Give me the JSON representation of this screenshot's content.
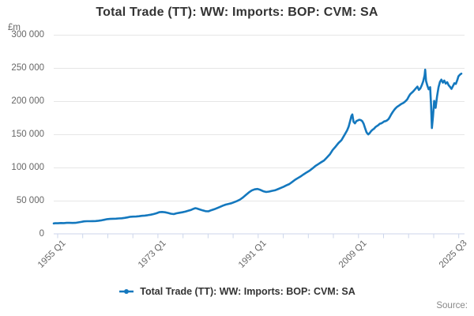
{
  "chart": {
    "title": "Total Trade (TT): WW: Imports: BOP: CVM: SA"
  },
  "legend": {
    "label": "Total Trade (TT): WW: Imports: BOP: CVM: SA"
  },
  "footer": {
    "source": "Source:"
  },
  "colors": {
    "series": "#1478be",
    "grid": "#e6e6e6",
    "axis": "#ccd6eb",
    "tick_text": "#666666",
    "title_text": "#333333"
  },
  "axes": {
    "y": {
      "unit": "£m",
      "min": 0,
      "max": 300000,
      "tick_values": [
        300000,
        250000,
        200000,
        150000,
        100000,
        50000,
        0
      ],
      "tick_labels": [
        "300 000",
        "250 000",
        "200 000",
        "150 000",
        "100 000",
        "50 000",
        "0"
      ],
      "gridlines": true
    },
    "x": {
      "start_label": "1955 Q1",
      "end_label": "2025 Q3",
      "minor_tick_count": 17,
      "major_labels": [
        {
          "text": "1955 Q1",
          "tick": 0
        },
        {
          "text": "1973 Q1",
          "tick": 4
        },
        {
          "text": "1991 Q1",
          "tick": 8
        },
        {
          "text": "2009 Q1",
          "tick": 12
        },
        {
          "text": "2025 Q3",
          "tick": 16
        }
      ]
    }
  },
  "chart_data": {
    "type": "line",
    "title": "Total Trade (TT): WW: Imports: BOP: CVM: SA",
    "xlabel": "",
    "ylabel": "£m",
    "ylim": [
      0,
      300000
    ],
    "x_range": [
      "1955 Q1",
      "2025 Q3"
    ],
    "legend_position": "bottom",
    "grid": "horizontal",
    "series": [
      {
        "name": "Total Trade (TT): WW: Imports: BOP: CVM: SA",
        "color": "#1478be",
        "points": [
          [
            1955.0,
            16300
          ],
          [
            1955.25,
            16500
          ],
          [
            1955.5,
            16700
          ],
          [
            1955.75,
            16600
          ],
          [
            1956.25,
            16900
          ],
          [
            1956.75,
            16800
          ],
          [
            1957.25,
            17200
          ],
          [
            1957.75,
            17100
          ],
          [
            1958.25,
            17000
          ],
          [
            1958.75,
            17200
          ],
          [
            1959.25,
            17900
          ],
          [
            1959.75,
            18600
          ],
          [
            1960.25,
            19400
          ],
          [
            1960.75,
            19700
          ],
          [
            1961.25,
            19600
          ],
          [
            1961.75,
            19800
          ],
          [
            1962.25,
            19900
          ],
          [
            1962.75,
            20300
          ],
          [
            1963.25,
            20900
          ],
          [
            1963.75,
            21800
          ],
          [
            1964.25,
            22700
          ],
          [
            1964.75,
            23100
          ],
          [
            1965.25,
            23300
          ],
          [
            1965.75,
            23500
          ],
          [
            1966.25,
            23800
          ],
          [
            1966.75,
            24100
          ],
          [
            1967.25,
            24600
          ],
          [
            1967.75,
            25400
          ],
          [
            1968.25,
            26300
          ],
          [
            1968.75,
            26600
          ],
          [
            1969.25,
            26700
          ],
          [
            1969.75,
            27100
          ],
          [
            1970.25,
            27700
          ],
          [
            1970.75,
            28100
          ],
          [
            1971.25,
            28700
          ],
          [
            1971.75,
            29400
          ],
          [
            1972.25,
            30300
          ],
          [
            1972.75,
            31600
          ],
          [
            1973.25,
            33200
          ],
          [
            1973.75,
            33600
          ],
          [
            1974.25,
            33100
          ],
          [
            1974.75,
            32200
          ],
          [
            1975.25,
            30900
          ],
          [
            1975.75,
            30300
          ],
          [
            1976.25,
            31500
          ],
          [
            1976.75,
            32400
          ],
          [
            1977.25,
            33100
          ],
          [
            1977.75,
            34100
          ],
          [
            1978.25,
            35300
          ],
          [
            1978.75,
            36700
          ],
          [
            1979.25,
            38600
          ],
          [
            1979.5,
            39300
          ],
          [
            1979.75,
            38800
          ],
          [
            1980.25,
            37400
          ],
          [
            1980.75,
            35900
          ],
          [
            1981.25,
            34800
          ],
          [
            1981.75,
            34500
          ],
          [
            1982.25,
            36200
          ],
          [
            1982.75,
            37600
          ],
          [
            1983.25,
            39400
          ],
          [
            1983.75,
            41200
          ],
          [
            1984.25,
            43100
          ],
          [
            1984.75,
            44700
          ],
          [
            1985.25,
            45700
          ],
          [
            1985.75,
            46800
          ],
          [
            1986.25,
            48500
          ],
          [
            1986.75,
            50200
          ],
          [
            1987.25,
            52400
          ],
          [
            1987.75,
            55600
          ],
          [
            1988.25,
            59400
          ],
          [
            1988.75,
            63000
          ],
          [
            1989.25,
            66000
          ],
          [
            1989.75,
            67600
          ],
          [
            1990.25,
            68200
          ],
          [
            1990.75,
            66800
          ],
          [
            1991.25,
            64800
          ],
          [
            1991.75,
            63700
          ],
          [
            1992.25,
            64300
          ],
          [
            1992.75,
            65300
          ],
          [
            1993.25,
            66200
          ],
          [
            1993.75,
            67800
          ],
          [
            1994.25,
            69800
          ],
          [
            1994.75,
            71600
          ],
          [
            1995.25,
            73700
          ],
          [
            1995.75,
            75600
          ],
          [
            1996.25,
            78800
          ],
          [
            1996.75,
            82200
          ],
          [
            1997.25,
            84800
          ],
          [
            1997.75,
            87400
          ],
          [
            1998.25,
            90400
          ],
          [
            1998.75,
            93200
          ],
          [
            1999.25,
            95800
          ],
          [
            1999.75,
            99200
          ],
          [
            2000.25,
            102800
          ],
          [
            2000.75,
            105600
          ],
          [
            2001.25,
            108400
          ],
          [
            2001.75,
            111200
          ],
          [
            2002.25,
            115600
          ],
          [
            2002.75,
            120400
          ],
          [
            2003.25,
            127000
          ],
          [
            2003.75,
            132000
          ],
          [
            2004.25,
            137500
          ],
          [
            2004.75,
            141500
          ],
          [
            2005.25,
            149000
          ],
          [
            2005.75,
            156500
          ],
          [
            2006.0,
            162000
          ],
          [
            2006.25,
            170000
          ],
          [
            2006.5,
            178500
          ],
          [
            2006.65,
            180500
          ],
          [
            2006.85,
            169500
          ],
          [
            2007.1,
            167000
          ],
          [
            2007.35,
            170500
          ],
          [
            2007.6,
            171500
          ],
          [
            2007.85,
            172500
          ],
          [
            2008.1,
            172000
          ],
          [
            2008.35,
            170500
          ],
          [
            2008.6,
            166500
          ],
          [
            2008.85,
            160000
          ],
          [
            2009.1,
            153500
          ],
          [
            2009.4,
            150500
          ],
          [
            2009.65,
            152500
          ],
          [
            2009.9,
            155500
          ],
          [
            2010.15,
            157500
          ],
          [
            2010.4,
            159000
          ],
          [
            2010.65,
            161500
          ],
          [
            2010.9,
            163000
          ],
          [
            2011.15,
            164500
          ],
          [
            2011.4,
            166500
          ],
          [
            2011.65,
            167000
          ],
          [
            2011.9,
            168500
          ],
          [
            2012.15,
            170000
          ],
          [
            2012.4,
            170500
          ],
          [
            2012.65,
            171500
          ],
          [
            2012.9,
            173500
          ],
          [
            2013.15,
            177000
          ],
          [
            2013.4,
            181000
          ],
          [
            2013.65,
            184500
          ],
          [
            2013.9,
            187500
          ],
          [
            2014.15,
            190000
          ],
          [
            2014.4,
            192000
          ],
          [
            2014.65,
            193500
          ],
          [
            2014.9,
            195000
          ],
          [
            2015.15,
            196500
          ],
          [
            2015.4,
            197500
          ],
          [
            2015.65,
            199000
          ],
          [
            2015.9,
            201000
          ],
          [
            2016.15,
            203500
          ],
          [
            2016.4,
            207500
          ],
          [
            2016.65,
            211000
          ],
          [
            2016.9,
            213000
          ],
          [
            2017.15,
            215000
          ],
          [
            2017.4,
            217500
          ],
          [
            2017.65,
            220000
          ],
          [
            2017.9,
            222500
          ],
          [
            2018.15,
            217500
          ],
          [
            2018.4,
            219500
          ],
          [
            2018.65,
            224500
          ],
          [
            2018.9,
            230500
          ],
          [
            2019.15,
            239500
          ],
          [
            2019.25,
            248000
          ],
          [
            2019.4,
            231000
          ],
          [
            2019.6,
            224500
          ],
          [
            2019.85,
            218500
          ],
          [
            2020.1,
            221500
          ],
          [
            2020.25,
            196000
          ],
          [
            2020.4,
            160000
          ],
          [
            2020.6,
            177500
          ],
          [
            2020.8,
            201000
          ],
          [
            2021.05,
            190500
          ],
          [
            2021.3,
            207500
          ],
          [
            2021.55,
            221500
          ],
          [
            2021.8,
            229500
          ],
          [
            2022.05,
            233000
          ],
          [
            2022.3,
            228500
          ],
          [
            2022.55,
            231500
          ],
          [
            2022.8,
            227000
          ],
          [
            2023.05,
            229000
          ],
          [
            2023.3,
            224500
          ],
          [
            2023.55,
            222000
          ],
          [
            2023.8,
            219000
          ],
          [
            2024.05,
            223500
          ],
          [
            2024.3,
            227500
          ],
          [
            2024.55,
            226500
          ],
          [
            2024.8,
            232500
          ],
          [
            2025.0,
            238000
          ],
          [
            2025.25,
            240500
          ],
          [
            2025.5,
            242000
          ]
        ]
      }
    ]
  }
}
